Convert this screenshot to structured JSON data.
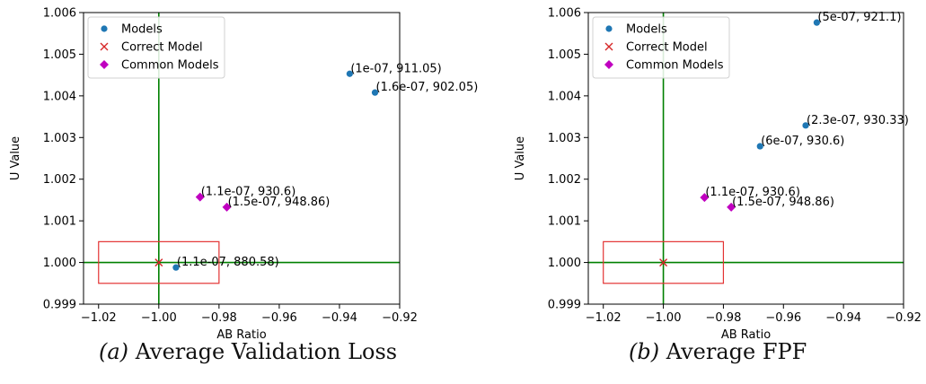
{
  "colors": {
    "models": "#1f77b4",
    "correct": "#d62728",
    "common": "#c000c0",
    "crosshair": "#008000",
    "box": "#e33333"
  },
  "legend": {
    "placement": "upper-left",
    "labels": [
      "Models",
      "Correct Model",
      "Common Models"
    ]
  },
  "chart_data": [
    {
      "type": "scatter",
      "xlabel": "AB Ratio",
      "ylabel": "U Value",
      "xlim": [
        -1.025,
        -0.92
      ],
      "ylim": [
        0.999,
        1.006
      ],
      "xticks": [
        "-1.02",
        "-1.00",
        "-0.98",
        "-0.96",
        "-0.94",
        "-0.92"
      ],
      "yticks": [
        "0.999",
        "1.000",
        "1.001",
        "1.002",
        "1.003",
        "1.004",
        "1.005",
        "1.006"
      ],
      "crosshair": {
        "x": -1.0,
        "y": 1.0
      },
      "box": {
        "x": [
          -1.02,
          -0.98
        ],
        "y": [
          0.9995,
          1.0005
        ]
      },
      "series": [
        {
          "name": "Models",
          "marker": "circle",
          "points": [
            {
              "x": -0.9366,
              "y": 1.00453,
              "label": "(1e-07, 911.05)"
            },
            {
              "x": -0.9282,
              "y": 1.00408,
              "label": "(1.6e-07, 902.05)"
            },
            {
              "x": -0.9943,
              "y": 0.99988,
              "label": "(1.1e-07, 880.58)"
            }
          ]
        },
        {
          "name": "Correct Model",
          "marker": "x",
          "points": [
            {
              "x": -1.0,
              "y": 1.0
            }
          ]
        },
        {
          "name": "Common Models",
          "marker": "diamond",
          "points": [
            {
              "x": -0.9863,
              "y": 1.00157,
              "label": "(1.1e-07, 930.6)"
            },
            {
              "x": -0.9774,
              "y": 1.00133,
              "label": "(1.5e-07, 948.86)"
            }
          ]
        }
      ],
      "caption": {
        "label": "(a)",
        "text": "Average Validation Loss"
      }
    },
    {
      "type": "scatter",
      "xlabel": "AB Ratio",
      "ylabel": "U Value",
      "xlim": [
        -1.025,
        -0.92
      ],
      "ylim": [
        0.999,
        1.006
      ],
      "xticks": [
        "-1.02",
        "-1.00",
        "-0.98",
        "-0.96",
        "-0.94",
        "-0.92"
      ],
      "yticks": [
        "0.999",
        "1.000",
        "1.001",
        "1.002",
        "1.003",
        "1.004",
        "1.005",
        "1.006"
      ],
      "crosshair": {
        "x": -1.0,
        "y": 1.0
      },
      "box": {
        "x": [
          -1.02,
          -0.98
        ],
        "y": [
          0.9995,
          1.0005
        ]
      },
      "series": [
        {
          "name": "Models",
          "marker": "circle",
          "points": [
            {
              "x": -0.9489,
              "y": 1.00576,
              "label": "(5e-07, 921.1)"
            },
            {
              "x": -0.9526,
              "y": 1.00329,
              "label": "(2.3e-07, 930.33)"
            },
            {
              "x": -0.9678,
              "y": 1.00279,
              "label": "(6e-07, 930.6)"
            }
          ]
        },
        {
          "name": "Correct Model",
          "marker": "x",
          "points": [
            {
              "x": -1.0,
              "y": 1.0
            }
          ]
        },
        {
          "name": "Common Models",
          "marker": "diamond",
          "points": [
            {
              "x": -0.9863,
              "y": 1.00156,
              "label": "(1.1e-07, 930.6)"
            },
            {
              "x": -0.9774,
              "y": 1.00133,
              "label": "(1.5e-07, 948.86)"
            }
          ]
        }
      ],
      "caption": {
        "label": "(b)",
        "text": "Average FPF"
      }
    }
  ]
}
